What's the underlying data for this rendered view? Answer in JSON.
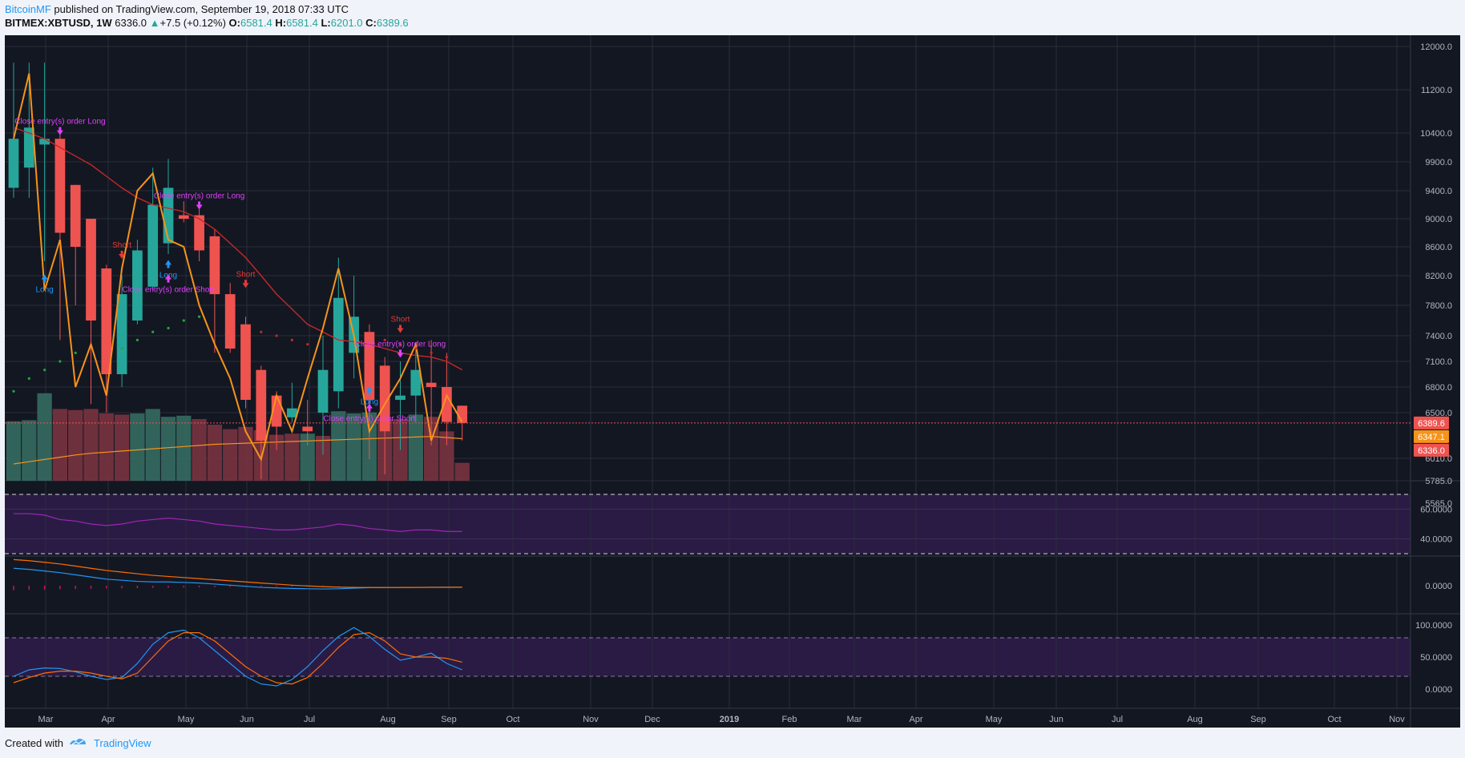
{
  "header": {
    "author": "BitcoinMF",
    "published_text": "published on TradingView.com, September 19, 2018 07:33 UTC",
    "symbol": "BITMEX:XBTUSD, 1W",
    "last": "6336.0",
    "change": "+7.5 (+0.12%)",
    "o_label": "O:",
    "o_value": "6581.4",
    "h_label": "H:",
    "h_value": "6581.4",
    "l_label": "L:",
    "l_value": "6201.0",
    "c_label": "C:",
    "c_value": "6389.6"
  },
  "footer": {
    "created_with": "Created with",
    "brand": "TradingView"
  },
  "colors": {
    "up": "#26a69a",
    "down": "#ef5350",
    "background": "#131722",
    "zigzag": "#f7931a",
    "ema": "#c62828",
    "volume_ma": "#f7931a",
    "rsi": "#9c27b0",
    "macd": "#2196f3",
    "signal": "#ff6d00",
    "stoch_k": "#2196f3",
    "stoch_d": "#ff6d00",
    "band": "#2a1b45",
    "marker_long": "#2196f3",
    "marker_short": "#e53935",
    "marker_close": "#e040fb"
  },
  "chart_data": {
    "type": "candlestick",
    "x_axis_labels": [
      "Mar",
      "Apr",
      "May",
      "Jun",
      "Jul",
      "Aug",
      "Sep",
      "Oct",
      "Nov",
      "Dec",
      "2019",
      "Feb",
      "Mar",
      "Apr",
      "May",
      "Jun",
      "Jul",
      "Aug",
      "Sep",
      "Oct",
      "Nov"
    ],
    "price_axis_labels": [
      "12000.0",
      "11200.0",
      "10400.0",
      "9900.0",
      "9400.0",
      "9000.0",
      "8600.0",
      "8200.0",
      "7800.0",
      "7400.0",
      "7100.0",
      "6800.0",
      "6500.0",
      "6010.0",
      "5785.0",
      "5565.0"
    ],
    "price_tags": [
      {
        "value": "6389.6",
        "color": "#ef5350"
      },
      {
        "value": "6347.1",
        "color": "#f7931a"
      },
      {
        "value": "6336.0",
        "color": "#ef5350"
      }
    ],
    "current_price_line": 6389.6,
    "candles": [
      {
        "o": 9450,
        "h": 11700,
        "l": 9300,
        "c": 10300
      },
      {
        "o": 9800,
        "h": 11700,
        "l": 9300,
        "c": 10500
      },
      {
        "o": 10200,
        "h": 11700,
        "l": 8400,
        "c": 10300
      },
      {
        "o": 10300,
        "h": 10400,
        "l": 7350,
        "c": 8800
      },
      {
        "o": 9500,
        "h": 9500,
        "l": 7800,
        "c": 8600
      },
      {
        "o": 9000,
        "h": 9000,
        "l": 6600,
        "c": 7600
      },
      {
        "o": 8300,
        "h": 8350,
        "l": 6500,
        "c": 6950
      },
      {
        "o": 6950,
        "h": 8200,
        "l": 6800,
        "c": 7950
      },
      {
        "o": 7600,
        "h": 8700,
        "l": 7550,
        "c": 8550
      },
      {
        "o": 8050,
        "h": 9800,
        "l": 8000,
        "c": 9200
      },
      {
        "o": 8650,
        "h": 9950,
        "l": 8500,
        "c": 9450
      },
      {
        "o": 9050,
        "h": 9250,
        "l": 8950,
        "c": 9000
      },
      {
        "o": 9050,
        "h": 9150,
        "l": 8400,
        "c": 8550
      },
      {
        "o": 8750,
        "h": 8850,
        "l": 7200,
        "c": 7950
      },
      {
        "o": 7950,
        "h": 8100,
        "l": 7200,
        "c": 7250
      },
      {
        "o": 7550,
        "h": 7650,
        "l": 6550,
        "c": 6650
      },
      {
        "o": 7000,
        "h": 7050,
        "l": 5800,
        "c": 6200
      },
      {
        "o": 6700,
        "h": 6750,
        "l": 6100,
        "c": 6350
      },
      {
        "o": 6450,
        "h": 6850,
        "l": 6400,
        "c": 6550
      },
      {
        "o": 6350,
        "h": 6650,
        "l": 6150,
        "c": 6300
      },
      {
        "o": 6500,
        "h": 7400,
        "l": 6050,
        "c": 7000
      },
      {
        "o": 6750,
        "h": 8450,
        "l": 6550,
        "c": 7900
      },
      {
        "o": 7200,
        "h": 8200,
        "l": 6900,
        "c": 7650
      },
      {
        "o": 7450,
        "h": 7550,
        "l": 6000,
        "c": 6650
      },
      {
        "o": 7050,
        "h": 7150,
        "l": 5850,
        "c": 6300
      },
      {
        "o": 6650,
        "h": 7100,
        "l": 6100,
        "c": 6700
      },
      {
        "o": 6700,
        "h": 7300,
        "l": 6400,
        "c": 7000
      },
      {
        "o": 6850,
        "h": 7350,
        "l": 6150,
        "c": 6800
      },
      {
        "o": 6800,
        "h": 7200,
        "l": 6150,
        "c": 6400
      },
      {
        "o": 6581.4,
        "h": 6581.4,
        "l": 6201.0,
        "c": 6389.6
      }
    ],
    "zigzag": [
      10300,
      11500,
      8000,
      8700,
      6800,
      7300,
      6700,
      8300,
      9400,
      9700,
      8700,
      8600,
      7800,
      7300,
      6900,
      6300,
      6000,
      6700,
      6300,
      6900,
      7500,
      8300,
      7400,
      6300,
      6600,
      6900,
      7300,
      6200,
      6700,
      6400
    ],
    "ema": [
      10500,
      10400,
      10300,
      10150,
      10000,
      9850,
      9650,
      9450,
      9300,
      9200,
      9150,
      9100,
      9000,
      8850,
      8650,
      8450,
      8200,
      7950,
      7750,
      7550,
      7450,
      7350,
      7330,
      7300,
      7250,
      7200,
      7170,
      7150,
      7100,
      7000
    ],
    "sar_dots": [
      {
        "i": 0,
        "v": 6750
      },
      {
        "i": 1,
        "v": 6900
      },
      {
        "i": 2,
        "v": 7000
      },
      {
        "i": 3,
        "v": 7100
      },
      {
        "i": 4,
        "v": 7200
      },
      {
        "i": 7,
        "v": 7250
      },
      {
        "i": 8,
        "v": 7350
      },
      {
        "i": 9,
        "v": 7450
      },
      {
        "i": 10,
        "v": 7500
      },
      {
        "i": 11,
        "v": 7600
      },
      {
        "i": 12,
        "v": 7650
      },
      {
        "i": 16,
        "v": 7450
      },
      {
        "i": 17,
        "v": 7400
      },
      {
        "i": 18,
        "v": 7350
      },
      {
        "i": 19,
        "v": 7300
      },
      {
        "i": 24,
        "v": 7350
      },
      {
        "i": 25,
        "v": 7300
      },
      {
        "i": 26,
        "v": 7250
      },
      {
        "i": 27,
        "v": 7200
      },
      {
        "i": 28,
        "v": 7150
      }
    ],
    "volume": [
      5.3,
      5.4,
      7.8,
      6.4,
      6.3,
      6.4,
      6.0,
      5.9,
      6.0,
      6.4,
      5.7,
      5.8,
      5.5,
      5.0,
      4.6,
      4.8,
      4.5,
      4.1,
      4.2,
      4.2,
      4.0,
      6.2,
      6.0,
      6.1,
      5.5,
      5.5,
      5.9,
      5.7,
      4.4,
      1.6
    ],
    "volume_up": [
      true,
      true,
      true,
      false,
      false,
      false,
      false,
      false,
      true,
      true,
      true,
      true,
      false,
      false,
      false,
      false,
      false,
      false,
      false,
      true,
      false,
      true,
      true,
      true,
      false,
      false,
      true,
      false,
      false,
      false
    ],
    "volume_ma": [
      1.5,
      1.7,
      1.9,
      2.1,
      2.3,
      2.45,
      2.55,
      2.65,
      2.75,
      2.85,
      2.95,
      3.05,
      3.15,
      3.25,
      3.3,
      3.35,
      3.4,
      3.45,
      3.5,
      3.55,
      3.6,
      3.65,
      3.7,
      3.75,
      3.8,
      3.85,
      3.9,
      3.95,
      3.85,
      3.75
    ],
    "markers": [
      {
        "i": 2,
        "type": "long",
        "dir": "up",
        "text": "Long",
        "v": 8150
      },
      {
        "i": 3,
        "type": "close",
        "dir": "down",
        "text": "Close entry(s) order Long",
        "v": 10450
      },
      {
        "i": 7,
        "type": "short",
        "dir": "down",
        "text": "Short",
        "v": 8500
      },
      {
        "i": 10,
        "type": "long",
        "dir": "up",
        "text": "Long",
        "v": 8350
      },
      {
        "i": 10,
        "type": "close",
        "dir": "up",
        "text": "Close entry(s) order Short",
        "v": 8150
      },
      {
        "i": 12,
        "type": "close",
        "dir": "down",
        "text": "Close entry(s) order Long",
        "v": 9200
      },
      {
        "i": 15,
        "type": "short",
        "dir": "down",
        "text": "Short",
        "v": 8100
      },
      {
        "i": 23,
        "type": "long",
        "dir": "up",
        "text": "Long",
        "v": 6750
      },
      {
        "i": 23,
        "type": "close",
        "dir": "up",
        "text": "Close entry(s) order Short",
        "v": 6550
      },
      {
        "i": 25,
        "type": "short",
        "dir": "down",
        "text": "Short",
        "v": 7500
      },
      {
        "i": 25,
        "type": "close",
        "dir": "down",
        "text": "Close entry(s) order Long",
        "v": 7200
      }
    ],
    "rsi": {
      "axis_labels": [
        "60.0000",
        "40.0000"
      ],
      "values": [
        57,
        57,
        56,
        53,
        52,
        50,
        49,
        50,
        52,
        53,
        54,
        53,
        52,
        50,
        49,
        48,
        47,
        46,
        46,
        47,
        48,
        50,
        49,
        47,
        46,
        45,
        46,
        46,
        45,
        45
      ]
    },
    "macd": {
      "axis_labels": [
        "0.0000"
      ],
      "macd": [
        1600,
        1500,
        1350,
        1200,
        1000,
        800,
        600,
        500,
        400,
        350,
        350,
        300,
        250,
        150,
        50,
        -50,
        -150,
        -200,
        -250,
        -280,
        -300,
        -280,
        -220,
        -180,
        -170,
        -160,
        -150,
        -140,
        -140,
        -140
      ],
      "signal": [
        2400,
        2300,
        2150,
        2000,
        1800,
        1600,
        1400,
        1250,
        1100,
        950,
        850,
        750,
        650,
        550,
        450,
        350,
        250,
        150,
        50,
        -20,
        -80,
        -130,
        -150,
        -160,
        -160,
        -160,
        -155,
        -150,
        -145,
        -140
      ],
      "histogram": [
        -400,
        -380,
        -350,
        -330,
        -300,
        -280,
        -260,
        -240,
        -220,
        -200,
        -180,
        -160,
        -150,
        -130,
        -110,
        -100,
        -90,
        -80,
        -70,
        -60,
        -50,
        -40,
        -30,
        -20,
        -10,
        -10,
        -5,
        -5,
        -5,
        -5
      ]
    },
    "stoch": {
      "axis_labels": [
        "100.0000",
        "50.0000",
        "0.0000"
      ],
      "k": [
        20,
        30,
        33,
        32,
        27,
        20,
        15,
        18,
        40,
        70,
        88,
        92,
        80,
        60,
        40,
        20,
        8,
        5,
        15,
        35,
        60,
        82,
        96,
        82,
        62,
        45,
        50,
        56,
        40,
        30
      ],
      "d": [
        10,
        18,
        25,
        28,
        28,
        25,
        20,
        16,
        25,
        50,
        75,
        88,
        88,
        75,
        55,
        35,
        20,
        10,
        8,
        18,
        40,
        65,
        85,
        88,
        75,
        55,
        50,
        50,
        48,
        42
      ]
    }
  }
}
